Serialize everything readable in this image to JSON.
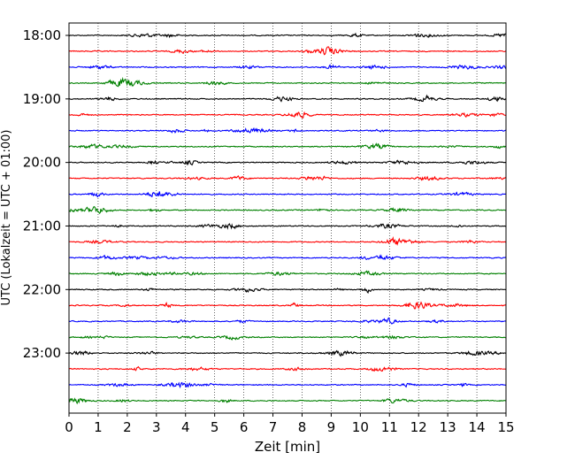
{
  "chart_data": {
    "type": "line",
    "title": "",
    "xlabel": "Zeit  [min]",
    "ylabel": "UTC (Lokalzeit = UTC + 01:00)",
    "xlim": [
      0,
      15
    ],
    "xticks": [
      0,
      1,
      2,
      3,
      4,
      5,
      6,
      7,
      8,
      9,
      10,
      11,
      12,
      13,
      14,
      15
    ],
    "ytick_labels": [
      "18:00",
      "19:00",
      "20:00",
      "21:00",
      "22:00",
      "23:00"
    ],
    "trace_start": "18:00",
    "trace_end": "23:45",
    "trace_interval_min": 15,
    "trace_colors": [
      "#000000",
      "#ff0000",
      "#0000ff",
      "#008000"
    ],
    "grid": "vertical-dotted",
    "legend": "none"
  }
}
